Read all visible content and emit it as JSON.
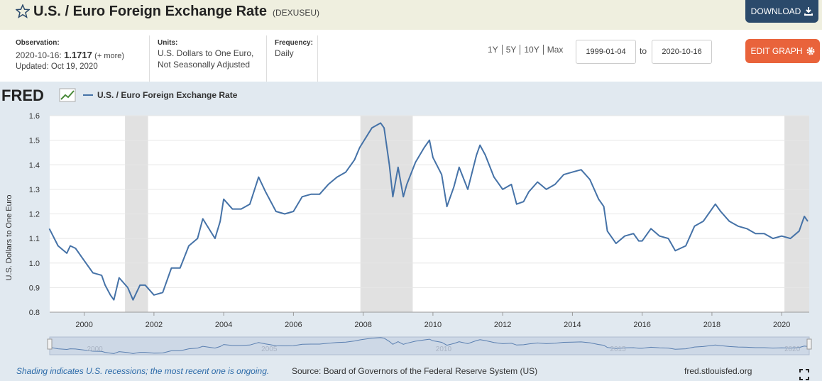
{
  "header": {
    "title": "U.S. / Euro Foreign Exchange Rate",
    "series_id": "(DEXUSEU)",
    "download": "DOWNLOAD"
  },
  "info": {
    "observation_label": "Observation:",
    "observation_date": "2020-10-16:",
    "observation_value": "1.1717",
    "more": "(+ more)",
    "updated": "Updated: Oct 19, 2020",
    "units_label": "Units:",
    "units": [
      "U.S. Dollars to One Euro,",
      "Not Seasonally Adjusted"
    ],
    "frequency_label": "Frequency:",
    "frequency": "Daily"
  },
  "controls": {
    "ranges": [
      "1Y",
      "5Y",
      "10Y",
      "Max"
    ],
    "start": "1999-01-04",
    "to": "to",
    "end": "2020-10-16",
    "edit": "EDIT GRAPH"
  },
  "chart_data": {
    "type": "line",
    "brand": "FRED",
    "y_label": "U.S. Dollars to One Euro",
    "x": [
      1999.0,
      1999.25,
      1999.5,
      1999.6,
      1999.75,
      2000.0,
      2000.25,
      2000.5,
      2000.6,
      2000.75,
      2000.85,
      2001.0,
      2001.25,
      2001.4,
      2001.6,
      2001.75,
      2002.0,
      2002.25,
      2002.5,
      2002.75,
      2003.0,
      2003.25,
      2003.4,
      2003.75,
      2003.9,
      2004.0,
      2004.25,
      2004.5,
      2004.75,
      2005.0,
      2005.2,
      2005.5,
      2005.75,
      2006.0,
      2006.25,
      2006.5,
      2006.75,
      2007.0,
      2007.25,
      2007.5,
      2007.75,
      2007.9,
      2008.25,
      2008.5,
      2008.6,
      2008.75,
      2008.85,
      2009.0,
      2009.15,
      2009.25,
      2009.5,
      2009.75,
      2009.9,
      2010.0,
      2010.25,
      2010.4,
      2010.6,
      2010.75,
      2011.0,
      2011.25,
      2011.35,
      2011.5,
      2011.75,
      2012.0,
      2012.25,
      2012.4,
      2012.6,
      2012.75,
      2013.0,
      2013.25,
      2013.5,
      2013.75,
      2014.0,
      2014.25,
      2014.5,
      2014.75,
      2014.9,
      2015.0,
      2015.25,
      2015.5,
      2015.75,
      2015.9,
      2016.0,
      2016.25,
      2016.5,
      2016.75,
      2016.95,
      2017.25,
      2017.5,
      2017.75,
      2018.0,
      2018.1,
      2018.25,
      2018.5,
      2018.75,
      2019.0,
      2019.25,
      2019.5,
      2019.75,
      2020.0,
      2020.25,
      2020.5,
      2020.65,
      2020.75
    ],
    "series": [
      {
        "name": "U.S. / Euro Foreign Exchange Rate",
        "color": "#4572a7",
        "values": [
          1.14,
          1.07,
          1.04,
          1.07,
          1.06,
          1.01,
          0.96,
          0.95,
          0.91,
          0.87,
          0.85,
          0.94,
          0.9,
          0.85,
          0.91,
          0.91,
          0.87,
          0.88,
          0.98,
          0.98,
          1.07,
          1.1,
          1.18,
          1.1,
          1.17,
          1.26,
          1.22,
          1.22,
          1.24,
          1.35,
          1.29,
          1.21,
          1.2,
          1.21,
          1.27,
          1.28,
          1.28,
          1.32,
          1.35,
          1.37,
          1.42,
          1.47,
          1.55,
          1.57,
          1.55,
          1.4,
          1.27,
          1.39,
          1.27,
          1.32,
          1.41,
          1.47,
          1.5,
          1.43,
          1.36,
          1.23,
          1.31,
          1.39,
          1.3,
          1.44,
          1.48,
          1.44,
          1.35,
          1.3,
          1.32,
          1.24,
          1.25,
          1.29,
          1.33,
          1.3,
          1.32,
          1.36,
          1.37,
          1.38,
          1.34,
          1.26,
          1.23,
          1.13,
          1.08,
          1.11,
          1.12,
          1.09,
          1.09,
          1.14,
          1.11,
          1.1,
          1.05,
          1.07,
          1.15,
          1.17,
          1.22,
          1.24,
          1.21,
          1.17,
          1.15,
          1.14,
          1.12,
          1.12,
          1.1,
          1.11,
          1.1,
          1.13,
          1.19,
          1.17
        ]
      }
    ],
    "recessions": [
      [
        2001.17,
        2001.83
      ],
      [
        2007.92,
        2009.42
      ],
      [
        2020.08,
        2020.79
      ]
    ],
    "recession_color": "#e1e1e1",
    "xlim": [
      1999.01,
      2020.79
    ],
    "ylim": [
      0.8,
      1.6
    ],
    "xticks": [
      2000,
      2002,
      2004,
      2006,
      2008,
      2010,
      2012,
      2014,
      2016,
      2018,
      2020
    ],
    "yticks": [
      0.8,
      0.9,
      {
        "value": 1,
        "label": "1.0"
      },
      1.1,
      1.2,
      1.3,
      1.4,
      1.5,
      1.6
    ],
    "navigator_ticks": [
      2000,
      2005,
      2010,
      2015,
      2020
    ],
    "grid": true
  },
  "footer": {
    "note": "Shading indicates U.S. recessions; the most recent one is ongoing.",
    "source": "Source: Board of Governors of the Federal Reserve System (US)",
    "site": "fred.stlouisfed.org"
  }
}
